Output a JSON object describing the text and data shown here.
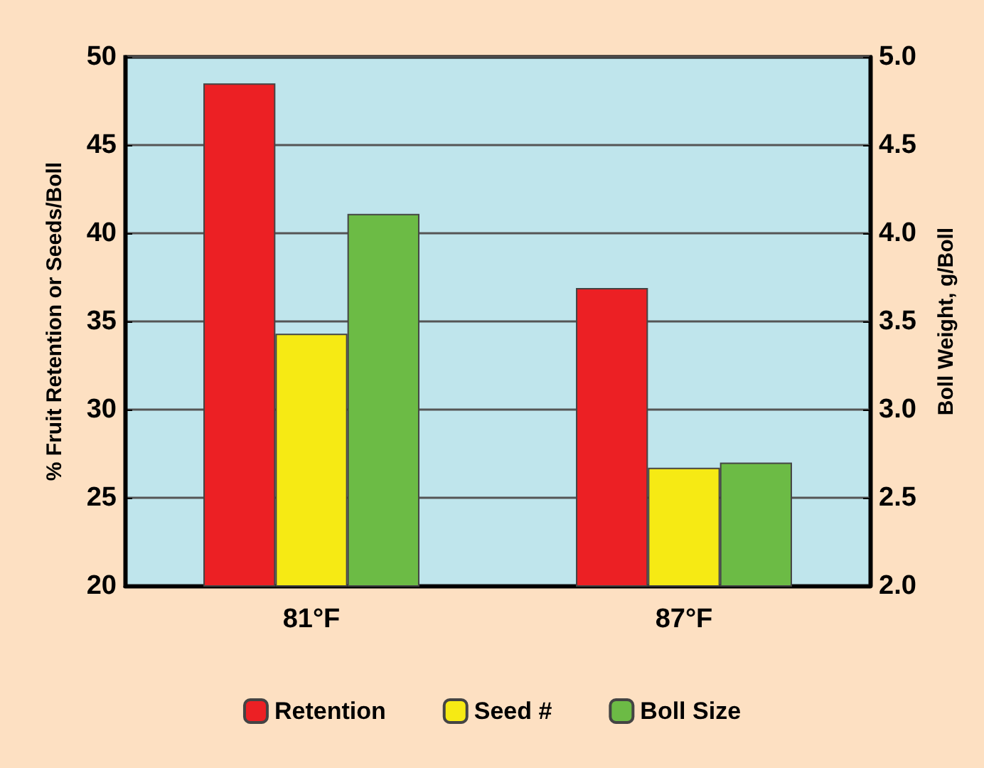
{
  "chart_data": {
    "type": "bar",
    "categories": [
      "81°F",
      "87°F"
    ],
    "ylabel": "% Fruit Retention or Seeds/Boll",
    "y2label": "Boll Weight, g/Boll",
    "series": [
      {
        "name": "Retention",
        "color": "#ec2024",
        "values": [
          48.5,
          36.9
        ]
      },
      {
        "name": "Seed #",
        "color": "#f6ea14",
        "values": [
          34.3,
          26.7
        ]
      },
      {
        "name": "Boll Size",
        "color": "#6cbb45",
        "values": [
          4.11,
          2.7
        ],
        "axis": "y2"
      }
    ],
    "ylim": [
      20,
      50
    ],
    "yticks": [
      20,
      25,
      30,
      35,
      40,
      45,
      50
    ],
    "y2lim": [
      2,
      5
    ],
    "y2ticks": [
      {
        "value": 2,
        "label": "2.0"
      },
      {
        "value": 2.5,
        "label": "2.5"
      },
      {
        "value": 3,
        "label": "3.0"
      },
      {
        "value": 3.5,
        "label": "3.5"
      },
      {
        "value": 4,
        "label": "4.0"
      },
      {
        "value": 4.5,
        "label": "4.5"
      },
      {
        "value": 5,
        "label": "5.0"
      }
    ],
    "grid": "y",
    "legend": "bottom"
  }
}
